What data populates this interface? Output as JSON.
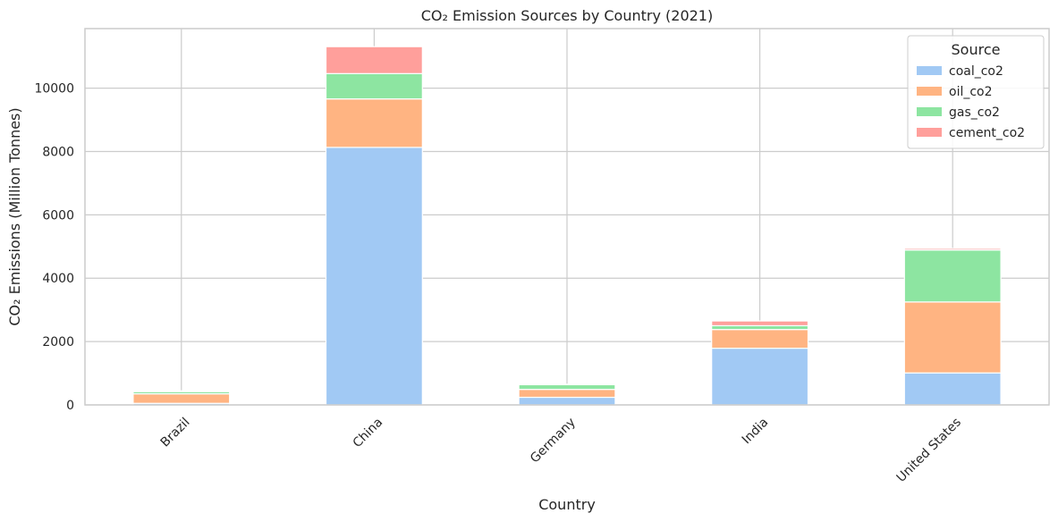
{
  "chart_data": {
    "type": "bar",
    "stacked": true,
    "title": "CO₂ Emission Sources by Country (2021)",
    "xlabel": "Country",
    "ylabel": "CO₂ Emissions (Million Tonnes)",
    "categories": [
      "Brazil",
      "China",
      "Germany",
      "India",
      "United States"
    ],
    "series": [
      {
        "name": "coal_co2",
        "color": "#a1c9f4",
        "values": [
          50,
          8130,
          240,
          1790,
          1010
        ]
      },
      {
        "name": "oil_co2",
        "color": "#ffb482",
        "values": [
          300,
          1530,
          250,
          590,
          2240
        ]
      },
      {
        "name": "gas_co2",
        "color": "#8de5a1",
        "values": [
          70,
          800,
          150,
          120,
          1640
        ]
      },
      {
        "name": "cement_co2",
        "color": "#ff9f9b",
        "values": [
          25,
          850,
          15,
          150,
          50
        ]
      }
    ],
    "ylim": [
      0,
      11880
    ],
    "yticks": [
      0,
      2000,
      4000,
      6000,
      8000,
      10000
    ],
    "legend_title": "Source",
    "legend_position": "upper right",
    "grid": true
  }
}
